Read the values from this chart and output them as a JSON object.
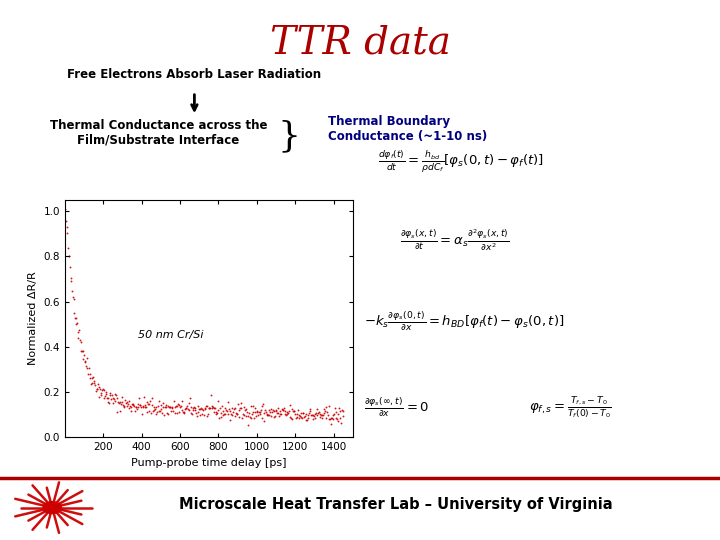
{
  "title": "TTR data",
  "title_color": "#aa0000",
  "title_fontsize": 28,
  "free_electrons_text": "Free Electrons Absorb Laser Radiation",
  "thermal_conductance_text": "Thermal Conductance across the\nFilm/Substrate Interface",
  "thermal_boundary_text": "Thermal Boundary\nConductance (~1-10 ns)",
  "thermal_boundary_color": "#000080",
  "label_50nm": "50 nm Cr/Si",
  "xlabel": "Pump-probe time delay [ps]",
  "ylabel": "Normalized ΔR/R",
  "footer_text": "Microscale Heat Transfer Lab – University of Virginia",
  "plot_xlim": [
    0,
    1500
  ],
  "plot_ylim": [
    0.0,
    1.05
  ],
  "plot_xticks": [
    200,
    400,
    600,
    800,
    1000,
    1200,
    1400
  ],
  "plot_yticks": [
    0.0,
    0.2,
    0.4,
    0.6,
    0.8,
    1.0
  ],
  "data_color": "#cc0000",
  "background_color": "#ffffff",
  "footer_line_color": "#aa0000",
  "starburst_color": "#cc0000"
}
